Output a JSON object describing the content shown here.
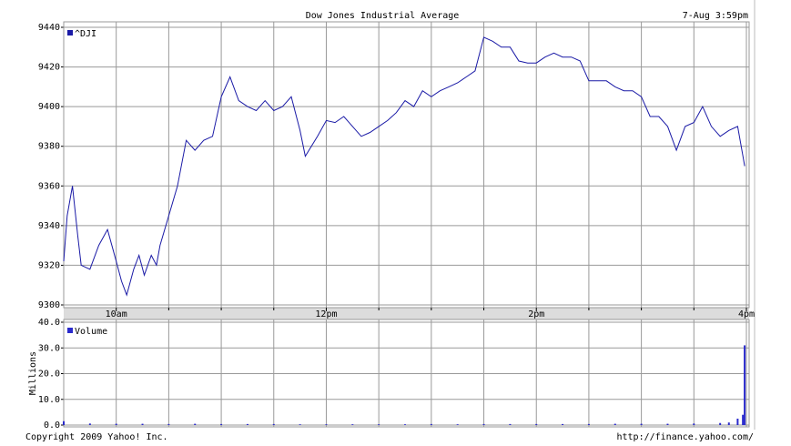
{
  "chart_data": [
    {
      "type": "line",
      "title": "Dow Jones Industrial Average",
      "subtitle": "7-Aug 3:59pm",
      "x": [
        570,
        572,
        575,
        578,
        580,
        585,
        590,
        595,
        600,
        603,
        606,
        610,
        613,
        616,
        620,
        623,
        625,
        630,
        635,
        640,
        645,
        650,
        655,
        660,
        665,
        670,
        675,
        680,
        685,
        690,
        695,
        700,
        705,
        708,
        715,
        720,
        725,
        730,
        735,
        740,
        745,
        750,
        755,
        760,
        765,
        770,
        775,
        780,
        785,
        790,
        795,
        800,
        805,
        810,
        815,
        820,
        825,
        830,
        835,
        840,
        845,
        850,
        855,
        860,
        865,
        870,
        875,
        880,
        885,
        890,
        895,
        900,
        905,
        910,
        915,
        920,
        925,
        930,
        935,
        940,
        945,
        950,
        955,
        958,
        959
      ],
      "series": [
        {
          "name": "^DJI",
          "color": "#1a1aa6",
          "values": [
            9322,
            9345,
            9360,
            9335,
            9320,
            9318,
            9330,
            9338,
            9322,
            9312,
            9305,
            9318,
            9325,
            9315,
            9325,
            9320,
            9330,
            9345,
            9360,
            9383,
            9378,
            9383,
            9385,
            9405,
            9415,
            9403,
            9400,
            9398,
            9403,
            9398,
            9400,
            9405,
            9388,
            9375,
            9385,
            9393,
            9392,
            9395,
            9390,
            9385,
            9387,
            9390,
            9393,
            9397,
            9403,
            9400,
            9408,
            9405,
            9408,
            9410,
            9412,
            9415,
            9418,
            9435,
            9433,
            9430,
            9430,
            9423,
            9422,
            9422,
            9425,
            9427,
            9425,
            9425,
            9423,
            9413,
            9413,
            9413,
            9410,
            9408,
            9408,
            9405,
            9395,
            9395,
            9390,
            9378,
            9390,
            9392,
            9400,
            9390,
            9385,
            9388,
            9390,
            9375,
            9370
          ]
        }
      ],
      "xlim": [
        570,
        960
      ],
      "xticks": [
        {
          "value": 600,
          "label": "10am"
        },
        {
          "value": 720,
          "label": "12pm"
        },
        {
          "value": 840,
          "label": "2pm"
        },
        {
          "value": 960,
          "label": "4pm"
        }
      ],
      "x_minor_ticks": [
        630,
        660,
        690,
        750,
        780,
        810,
        870,
        900,
        930
      ],
      "ylim": [
        9300,
        9440
      ],
      "yticks": [
        9300,
        9320,
        9340,
        9360,
        9380,
        9400,
        9420,
        9440
      ],
      "grid": true
    },
    {
      "type": "bar",
      "ylabel": "Millions",
      "x": [
        570,
        585,
        600,
        615,
        630,
        645,
        660,
        675,
        690,
        705,
        720,
        735,
        750,
        765,
        780,
        795,
        810,
        825,
        840,
        855,
        870,
        885,
        900,
        915,
        930,
        945,
        950,
        955,
        958,
        959
      ],
      "series": [
        {
          "name": "Volume",
          "color": "#2a2acc",
          "values": [
            1.5,
            0.6,
            0.5,
            0.5,
            0.4,
            0.5,
            0.4,
            0.4,
            0.4,
            0.3,
            0.3,
            0.3,
            0.3,
            0.3,
            0.4,
            0.3,
            0.4,
            0.4,
            0.4,
            0.4,
            0.4,
            0.5,
            0.5,
            0.5,
            0.6,
            0.8,
            1.0,
            2.5,
            4.0,
            31.0
          ]
        }
      ],
      "ylim": [
        0,
        40
      ],
      "yticks": [
        {
          "value": 0,
          "label": "0.0"
        },
        {
          "value": 10,
          "label": "10.0"
        },
        {
          "value": 20,
          "label": "20.0"
        },
        {
          "value": 30,
          "label": "30.0"
        },
        {
          "value": 40,
          "label": "40.0"
        }
      ],
      "grid": true,
      "annotations": [
        "Copyright 2009 Yahoo! Inc.",
        "http://finance.yahoo.com/"
      ]
    }
  ]
}
